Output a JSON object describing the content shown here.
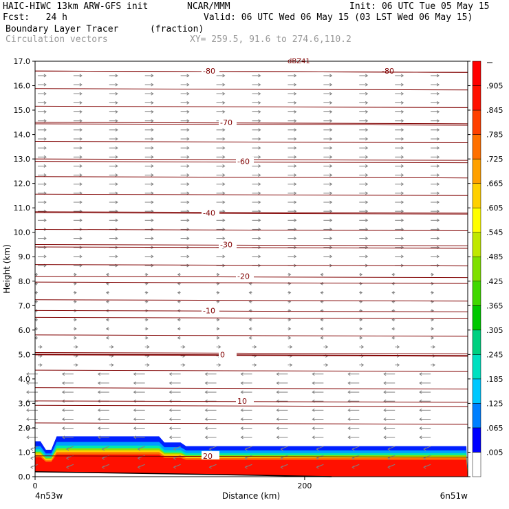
{
  "header": {
    "line1_left": "HAIC-HIWC 13km ARW-GFS init",
    "line1_mid": "NCAR/MMM",
    "line1_right": "Init: 06 UTC Tue 05 May 15",
    "line2_left": "Fcst:   24 h",
    "line2_right": "Valid: 06 UTC Wed 06 May 15 (03 LST Wed 06 May 15)",
    "line3_left": "Boundary Layer Tracer",
    "line3_mid": "(fraction)",
    "line4_left": "Circulation vectors",
    "line4_mid": "XY= 259.5, 91.6 to 274.6,110.2"
  },
  "chart_data": {
    "type": "cross-section",
    "xlabel": "Distance (km)",
    "ylabel": "Height (km)",
    "xlim": [
      0,
      321
    ],
    "ylim": [
      0,
      17
    ],
    "yticks": [
      "0.0",
      "1.0",
      "2.0",
      "3.0",
      "4.0",
      "5.0",
      "6.0",
      "7.0",
      "8.0",
      "9.0",
      "10.0",
      "11.0",
      "12.0",
      "13.0",
      "14.0",
      "15.0",
      "16.0",
      "17.0"
    ],
    "xticks": [
      {
        "value": 0,
        "label": "0"
      },
      {
        "value": 200,
        "label": "200"
      }
    ],
    "x_end_labels": {
      "left": "4n53w",
      "right": "6n51w"
    },
    "temperature_contours": [
      {
        "label": "-80",
        "height": 16.6
      },
      {
        "label": "-70",
        "height": 14.5
      },
      {
        "label": "-60",
        "height": 12.9
      },
      {
        "label": "-40",
        "height": 10.8
      },
      {
        "label": "-30",
        "height": 9.5
      },
      {
        "label": "-20",
        "height": 8.2
      },
      {
        "label": "-10",
        "height": 6.8
      },
      {
        "label": "0",
        "height": 5.0
      },
      {
        "label": "10",
        "height": 3.1
      },
      {
        "label": "20",
        "height": 0.85
      }
    ],
    "top_label": "dBZ41",
    "colorbar": {
      "labels": [
        ".005",
        ".065",
        ".125",
        ".185",
        ".245",
        ".305",
        ".365",
        ".425",
        ".485",
        ".545",
        ".605",
        ".665",
        ".725",
        ".785",
        ".845",
        ".905"
      ],
      "colors": [
        "#ffffff",
        "#0000ff",
        "#0080ff",
        "#00c8ff",
        "#00e0c0",
        "#00d080",
        "#00c800",
        "#40d800",
        "#80e000",
        "#c0e800",
        "#ffff00",
        "#ffd000",
        "#ffa000",
        "#ff7000",
        "#ff4000",
        "#ff1000",
        "#ff0000"
      ]
    },
    "tracer_layer": {
      "top_km": 1.45,
      "description_colors": [
        "#0000ff",
        "#00a0ff",
        "#00ffb0",
        "#ffff00",
        "#ff8000",
        "#ff0000"
      ]
    }
  }
}
